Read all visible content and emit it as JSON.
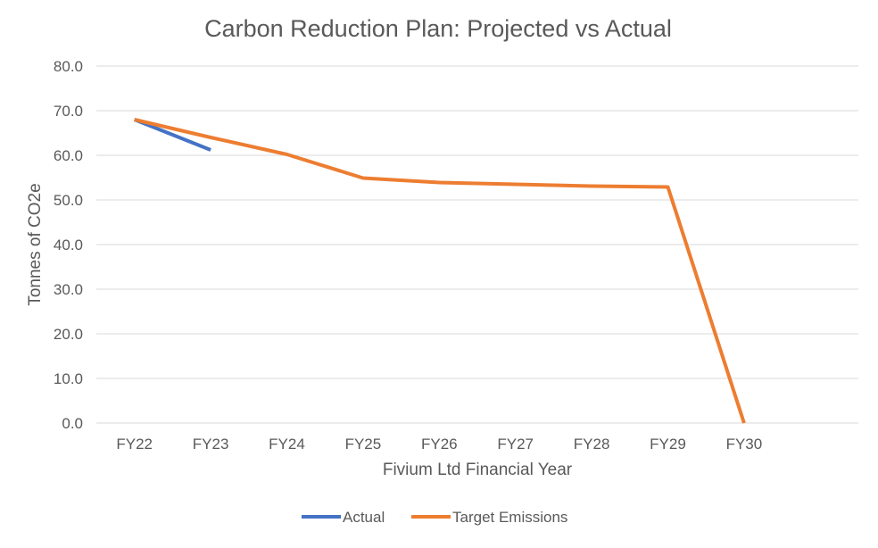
{
  "chart_data": {
    "type": "line",
    "title": "Carbon Reduction Plan: Projected vs Actual",
    "xlabel": "Fivium Ltd Financial Year",
    "ylabel": "Tonnes of CO2e",
    "categories": [
      "FY22",
      "FY23",
      "FY24",
      "FY25",
      "FY26",
      "FY27",
      "FY28",
      "FY29",
      "FY30"
    ],
    "y_ticks": [
      "0.0",
      "10.0",
      "20.0",
      "30.0",
      "40.0",
      "50.0",
      "60.0",
      "70.0",
      "80.0"
    ],
    "ylim": [
      0,
      80
    ],
    "grid": true,
    "legend_position": "bottom",
    "series": [
      {
        "name": "Actual",
        "color": "#4472C4",
        "values": [
          68.0,
          61.2,
          null,
          null,
          null,
          null,
          null,
          null,
          null
        ]
      },
      {
        "name": "Target Emissions",
        "color": "#ED7D31",
        "values": [
          68.0,
          64.0,
          60.2,
          54.9,
          53.9,
          53.5,
          53.1,
          52.9,
          0.0
        ]
      }
    ]
  }
}
